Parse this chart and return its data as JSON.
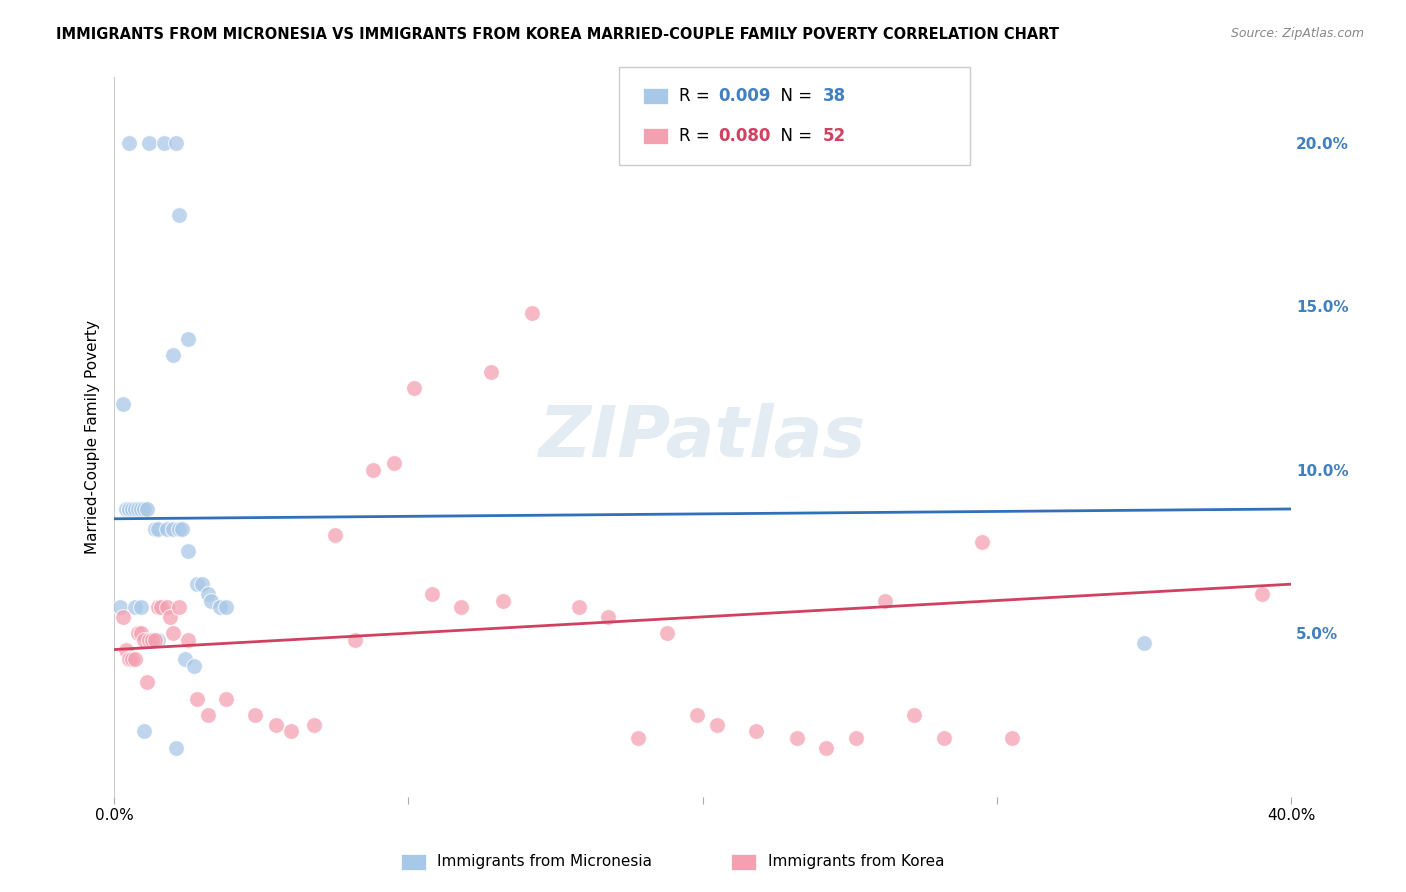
{
  "title": "IMMIGRANTS FROM MICRONESIA VS IMMIGRANTS FROM KOREA MARRIED-COUPLE FAMILY POVERTY CORRELATION CHART",
  "source": "Source: ZipAtlas.com",
  "ylabel": "Married-Couple Family Poverty",
  "xmin": 0.0,
  "xmax": 0.4,
  "ymin": 0.0,
  "ymax": 0.22,
  "yticks": [
    0.05,
    0.1,
    0.15,
    0.2
  ],
  "ytick_labels": [
    "5.0%",
    "10.0%",
    "15.0%",
    "20.0%"
  ],
  "blue_R": 0.009,
  "blue_N": 38,
  "pink_R": 0.08,
  "pink_N": 52,
  "blue_color": "#a8c8e8",
  "pink_color": "#f4a0b0",
  "blue_line_color": "#3070b8",
  "pink_line_color": "#d04060",
  "blue_legend_color": "#4080c0",
  "pink_legend_color": "#d04060",
  "blue_x": [
    0.005,
    0.012,
    0.017,
    0.021,
    0.022,
    0.003,
    0.02,
    0.025,
    0.004,
    0.005,
    0.006,
    0.007,
    0.008,
    0.009,
    0.01,
    0.011,
    0.014,
    0.015,
    0.018,
    0.02,
    0.022,
    0.023,
    0.025,
    0.028,
    0.03,
    0.032,
    0.033,
    0.036,
    0.038,
    0.002,
    0.007,
    0.009,
    0.015,
    0.024,
    0.027,
    0.35,
    0.01,
    0.021
  ],
  "blue_y": [
    0.2,
    0.2,
    0.2,
    0.2,
    0.178,
    0.12,
    0.135,
    0.14,
    0.088,
    0.088,
    0.088,
    0.088,
    0.088,
    0.088,
    0.088,
    0.088,
    0.082,
    0.082,
    0.082,
    0.082,
    0.082,
    0.082,
    0.075,
    0.065,
    0.065,
    0.062,
    0.06,
    0.058,
    0.058,
    0.058,
    0.058,
    0.058,
    0.048,
    0.042,
    0.04,
    0.047,
    0.02,
    0.015
  ],
  "pink_x": [
    0.003,
    0.004,
    0.005,
    0.006,
    0.007,
    0.008,
    0.009,
    0.01,
    0.011,
    0.012,
    0.013,
    0.014,
    0.015,
    0.016,
    0.018,
    0.019,
    0.02,
    0.022,
    0.025,
    0.028,
    0.032,
    0.038,
    0.048,
    0.055,
    0.06,
    0.068,
    0.075,
    0.082,
    0.088,
    0.095,
    0.102,
    0.108,
    0.118,
    0.128,
    0.132,
    0.142,
    0.158,
    0.168,
    0.178,
    0.188,
    0.198,
    0.205,
    0.218,
    0.232,
    0.242,
    0.252,
    0.262,
    0.272,
    0.282,
    0.295,
    0.305,
    0.39
  ],
  "pink_y": [
    0.055,
    0.045,
    0.042,
    0.042,
    0.042,
    0.05,
    0.05,
    0.048,
    0.035,
    0.048,
    0.048,
    0.048,
    0.058,
    0.058,
    0.058,
    0.055,
    0.05,
    0.058,
    0.048,
    0.03,
    0.025,
    0.03,
    0.025,
    0.022,
    0.02,
    0.022,
    0.08,
    0.048,
    0.1,
    0.102,
    0.125,
    0.062,
    0.058,
    0.13,
    0.06,
    0.148,
    0.058,
    0.055,
    0.018,
    0.05,
    0.025,
    0.022,
    0.02,
    0.018,
    0.015,
    0.018,
    0.06,
    0.025,
    0.018,
    0.078,
    0.018,
    0.062
  ],
  "background_color": "#ffffff",
  "grid_color": "#dddddd"
}
